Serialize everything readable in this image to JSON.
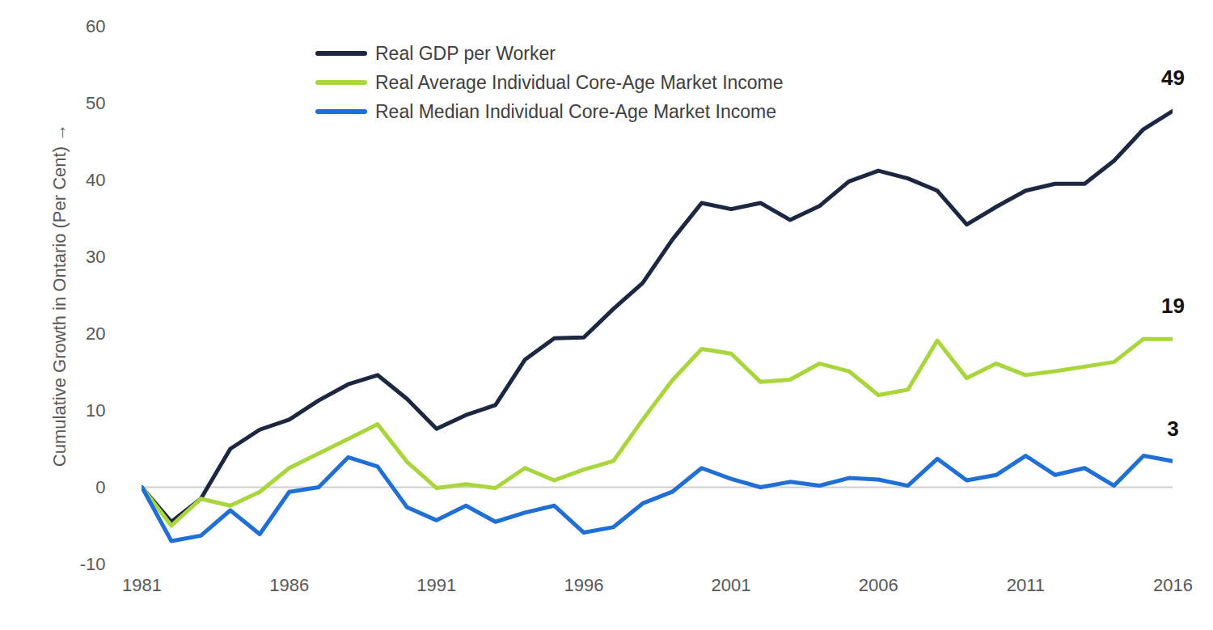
{
  "chart_data": {
    "type": "line",
    "y_label": "Cumulative Growth in Ontario (Per Cent)",
    "x": [
      1981,
      1982,
      1983,
      1984,
      1985,
      1986,
      1987,
      1988,
      1989,
      1990,
      1991,
      1992,
      1993,
      1994,
      1995,
      1996,
      1997,
      1998,
      1999,
      2000,
      2001,
      2002,
      2003,
      2004,
      2005,
      2006,
      2007,
      2008,
      2009,
      2010,
      2011,
      2012,
      2013,
      2014,
      2015,
      2016
    ],
    "xlim": [
      1981,
      2016
    ],
    "xticks": [
      1981,
      1986,
      1991,
      1996,
      2001,
      2006,
      2011,
      2016
    ],
    "ylim": [
      -10,
      60
    ],
    "yticks": [
      -10,
      0,
      10,
      20,
      30,
      40,
      50,
      60
    ],
    "grid": false,
    "legend": "top-left",
    "series": [
      {
        "name": "Real GDP per Worker",
        "color": "#1c2841",
        "values": [
          0,
          -4.5,
          -1.5,
          5,
          7.5,
          8.8,
          11.3,
          13.4,
          14.6,
          11.5,
          7.6,
          9.4,
          10.7,
          16.6,
          19.4,
          19.5,
          23.2,
          26.6,
          32.2,
          37,
          36.2,
          37,
          34.8,
          36.6,
          39.8,
          41.2,
          40.2,
          38.6,
          34.2,
          36.5,
          38.6,
          39.5,
          39.5,
          42.5,
          46.6,
          49
        ]
      },
      {
        "name": "Real Average Individual Core-Age Market Income",
        "color": "#a8d63c",
        "values": [
          0,
          -5,
          -1.5,
          -2.4,
          -0.6,
          2.5,
          4.4,
          6.3,
          8.2,
          3.3,
          -0.1,
          0.4,
          -0.1,
          2.5,
          0.9,
          2.3,
          3.4,
          8.8,
          13.9,
          18,
          17.4,
          13.7,
          14,
          16.1,
          15.1,
          12,
          12.7,
          19.1,
          14.2,
          16.1,
          14.6,
          15.1,
          15.7,
          16.3,
          19.3,
          19.3
        ]
      },
      {
        "name": "Real Median Individual Core-Age Market Income",
        "color": "#1f6fd6",
        "values": [
          0,
          -7,
          -6.3,
          -3,
          -6.1,
          -0.6,
          0,
          3.9,
          2.7,
          -2.6,
          -4.3,
          -2.4,
          -4.5,
          -3.3,
          -2.4,
          -5.9,
          -5.2,
          -2.1,
          -0.6,
          2.5,
          1.1,
          0,
          0.7,
          0.2,
          1.2,
          1,
          0.2,
          3.7,
          0.9,
          1.6,
          4.1,
          1.6,
          2.5,
          0.2,
          4.1,
          3.4
        ]
      }
    ],
    "annotations": [
      {
        "series": "Real GDP per Worker",
        "text": "49"
      },
      {
        "series": "Real Average Individual Core-Age Market Income",
        "text": "19"
      },
      {
        "series": "Real Median Individual Core-Age Market Income",
        "text": "3"
      }
    ]
  }
}
